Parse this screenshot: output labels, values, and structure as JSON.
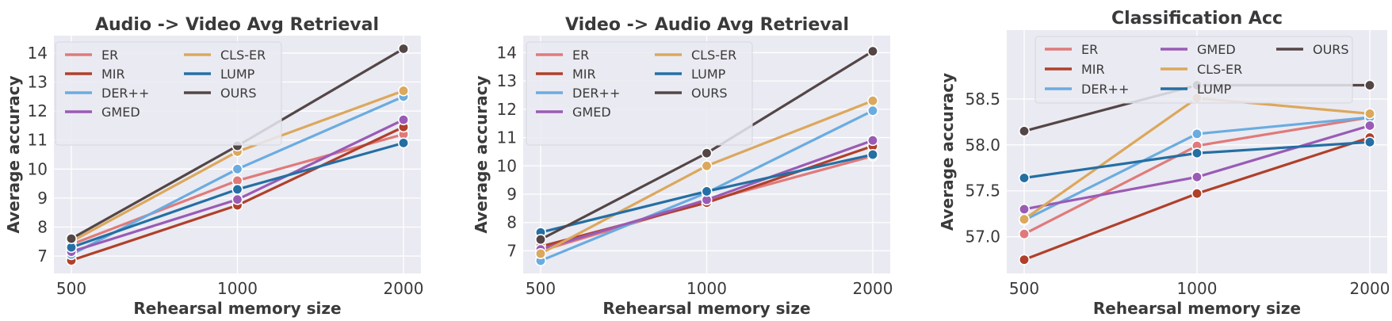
{
  "series_colors": {
    "ER": "#e07a7a",
    "MIR": "#b0402a",
    "DER++": "#6aace0",
    "GMED": "#9a5bb5",
    "CLS-ER": "#dba85c",
    "LUMP": "#246fa3",
    "OURS": "#544646"
  },
  "chart_data": [
    {
      "type": "line",
      "title": "Audio -> Video Avg Retrieval",
      "xlabel": "Rehearsal memory size",
      "ylabel": "Average accuracy",
      "x": [
        "500",
        "1000",
        "2000"
      ],
      "yticks": [
        "7",
        "8",
        "9",
        "10",
        "11",
        "12",
        "13",
        "14"
      ],
      "ylim": [
        6.4,
        14.6
      ],
      "grid": true,
      "legend_position": "top-left",
      "legend_columns": 2,
      "series": [
        {
          "name": "ER",
          "values": [
            7.4,
            9.6,
            11.2
          ]
        },
        {
          "name": "MIR",
          "values": [
            6.85,
            8.75,
            11.45
          ]
        },
        {
          "name": "DER++",
          "values": [
            7.05,
            10.0,
            12.5
          ]
        },
        {
          "name": "GMED",
          "values": [
            7.15,
            8.95,
            11.7
          ]
        },
        {
          "name": "CLS-ER",
          "values": [
            7.5,
            10.6,
            12.7
          ]
        },
        {
          "name": "LUMP",
          "values": [
            7.3,
            9.3,
            10.9
          ]
        },
        {
          "name": "OURS",
          "values": [
            7.6,
            10.8,
            14.15
          ]
        }
      ]
    },
    {
      "type": "line",
      "title": "Video -> Audio Avg Retrieval",
      "xlabel": "Rehearsal memory size",
      "ylabel": "Average accuracy",
      "x": [
        "500",
        "1000",
        "2000"
      ],
      "yticks": [
        "7",
        "8",
        "9",
        "10",
        "11",
        "12",
        "13",
        "14"
      ],
      "ylim": [
        6.2,
        14.6
      ],
      "grid": true,
      "legend_position": "top-left",
      "legend_columns": 2,
      "series": [
        {
          "name": "ER",
          "values": [
            7.0,
            8.75,
            10.35
          ]
        },
        {
          "name": "MIR",
          "values": [
            7.15,
            8.7,
            10.7
          ]
        },
        {
          "name": "DER++",
          "values": [
            6.65,
            9.05,
            11.95
          ]
        },
        {
          "name": "GMED",
          "values": [
            7.05,
            8.8,
            10.9
          ]
        },
        {
          "name": "CLS-ER",
          "values": [
            6.9,
            10.0,
            12.3
          ]
        },
        {
          "name": "LUMP",
          "values": [
            7.65,
            9.1,
            10.4
          ]
        },
        {
          "name": "OURS",
          "values": [
            7.4,
            10.45,
            14.05
          ]
        }
      ]
    },
    {
      "type": "line",
      "title": "Classification Acc",
      "xlabel": "Rehearsal memory size",
      "ylabel": "Average accuracy",
      "x": [
        "500",
        "1000",
        "2000"
      ],
      "yticks": [
        "57.0",
        "57.5",
        "58.0",
        "58.5"
      ],
      "ylim": [
        56.6,
        59.25
      ],
      "grid": true,
      "legend_position": "top",
      "legend_columns": 3,
      "series": [
        {
          "name": "ER",
          "values": [
            57.03,
            57.99,
            58.3
          ]
        },
        {
          "name": "MIR",
          "values": [
            56.75,
            57.47,
            58.08
          ]
        },
        {
          "name": "DER++",
          "values": [
            57.18,
            58.12,
            58.3
          ]
        },
        {
          "name": "GMED",
          "values": [
            57.3,
            57.65,
            58.21
          ]
        },
        {
          "name": "CLS-ER",
          "values": [
            57.19,
            58.51,
            58.34
          ]
        },
        {
          "name": "LUMP",
          "values": [
            57.64,
            57.91,
            58.03
          ]
        },
        {
          "name": "OURS",
          "values": [
            58.15,
            58.65,
            58.65
          ]
        }
      ]
    }
  ]
}
